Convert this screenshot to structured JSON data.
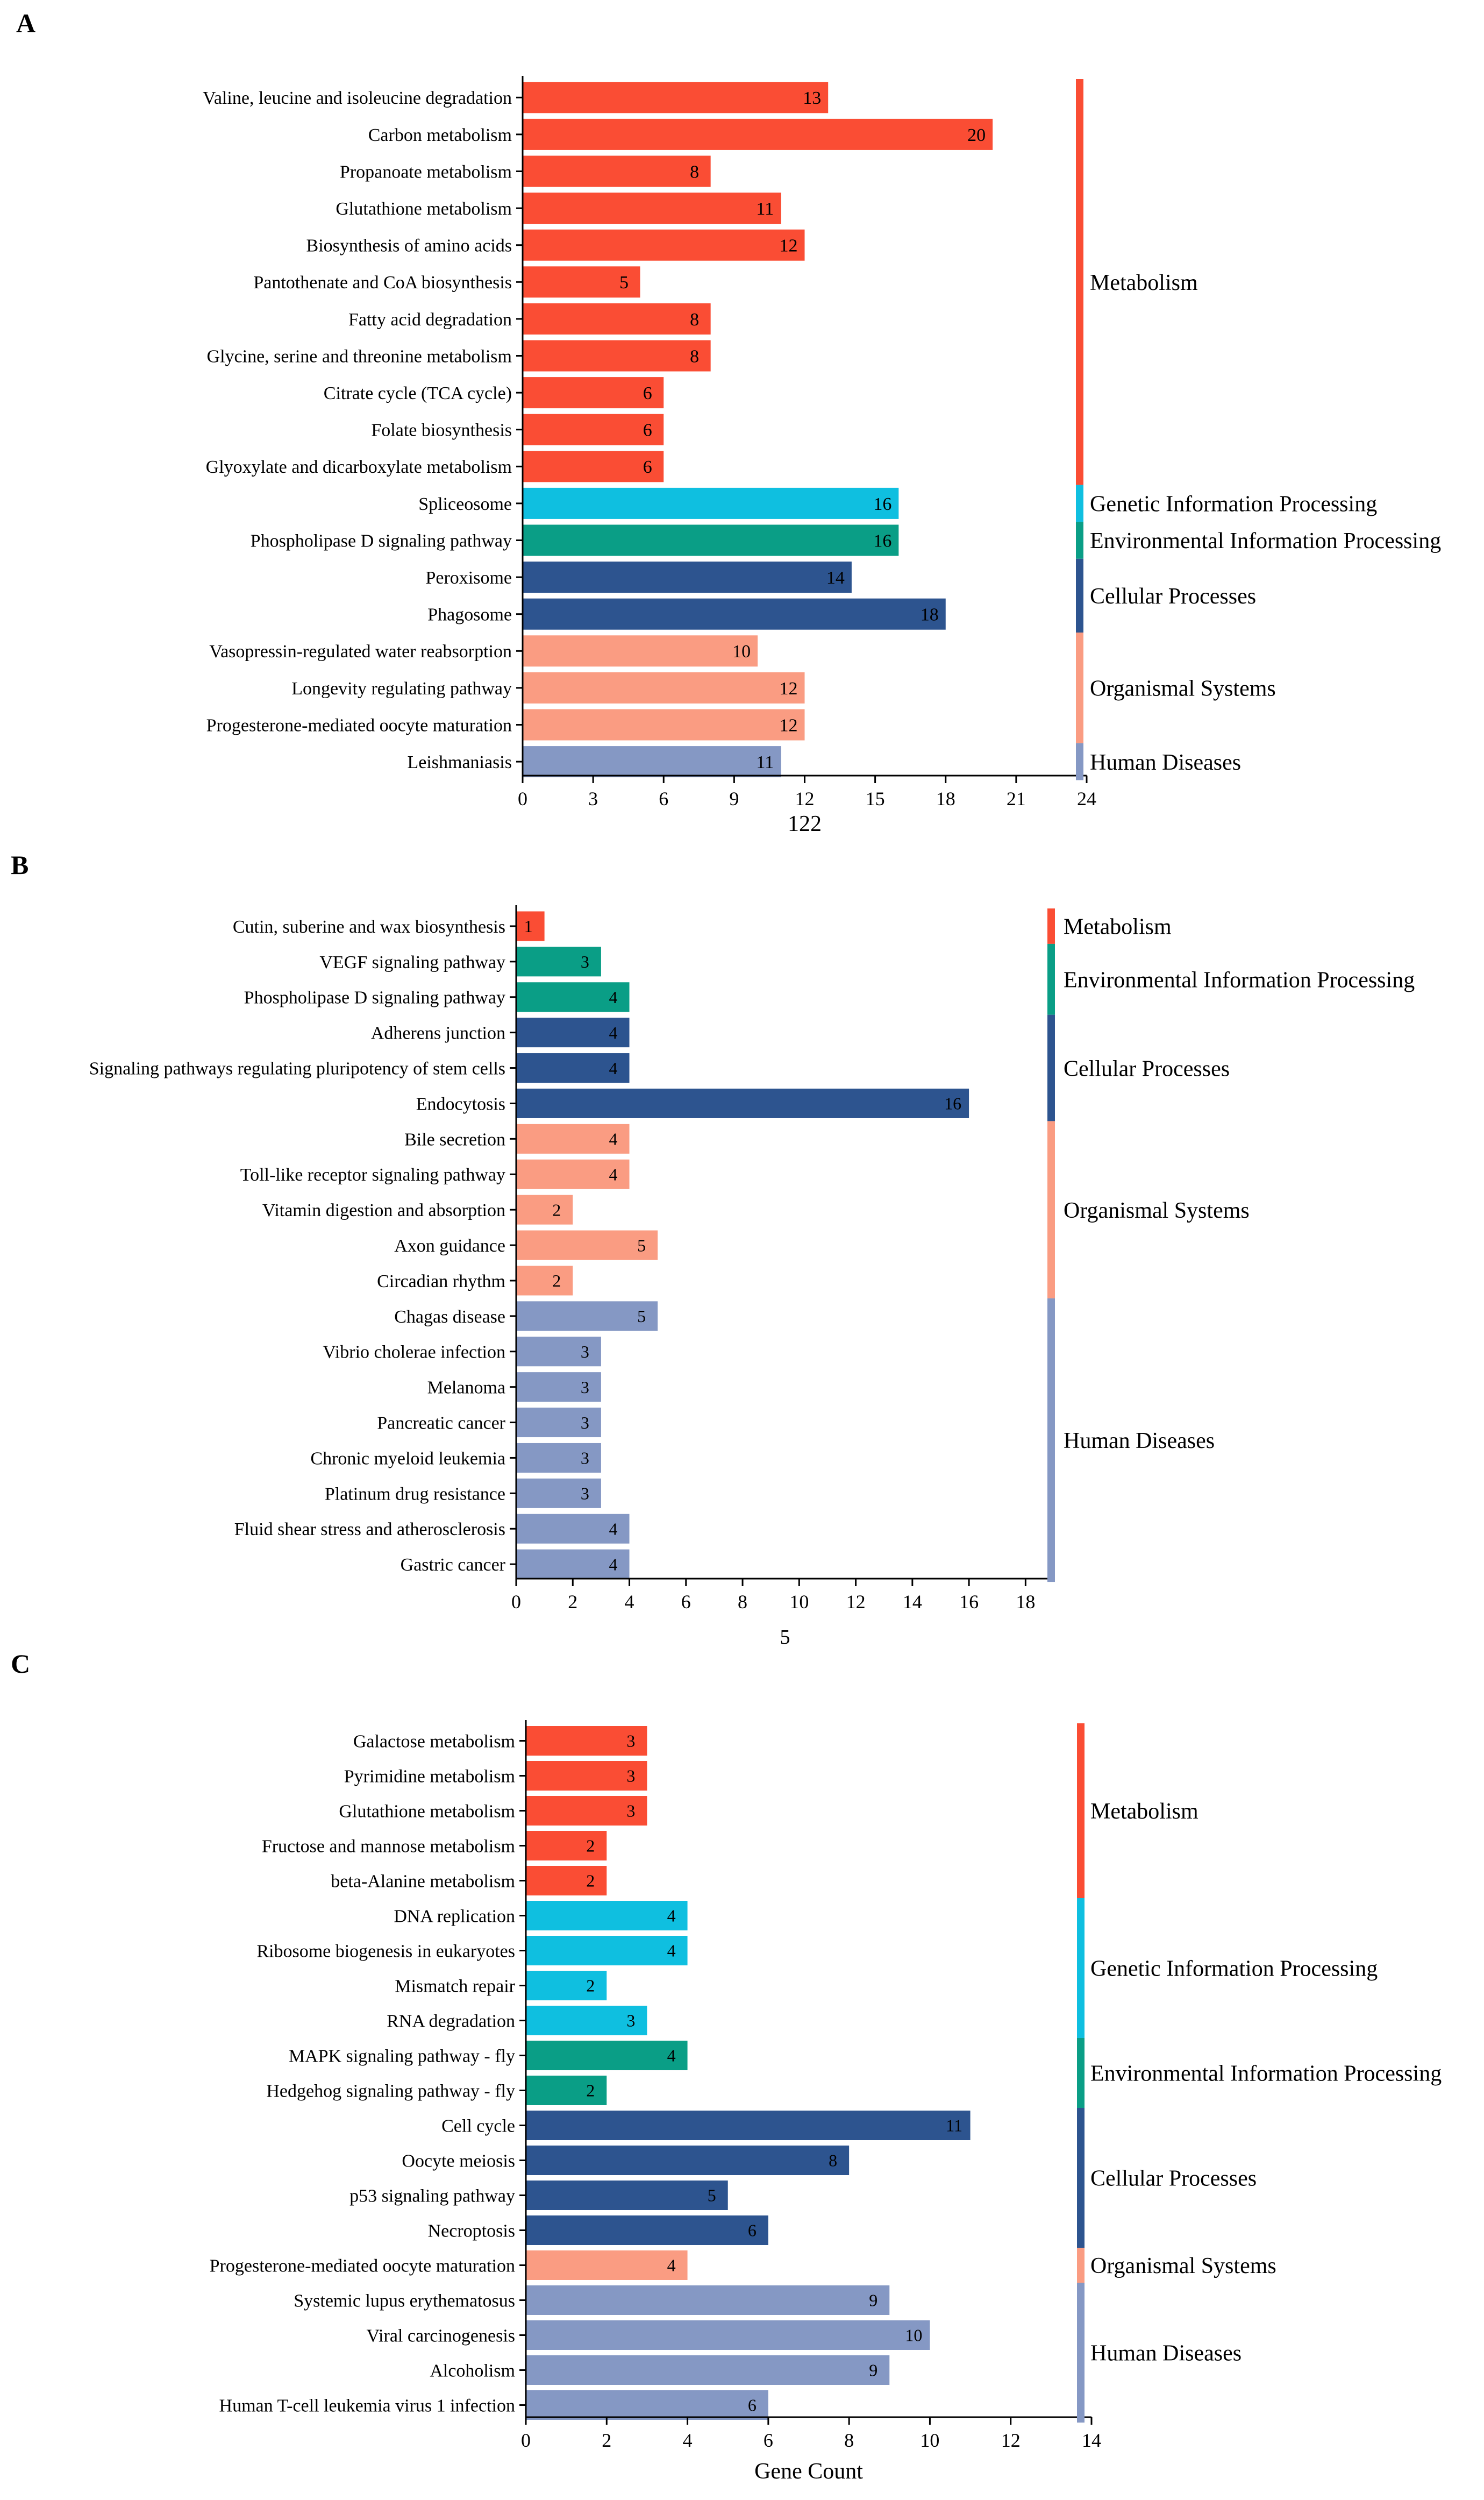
{
  "colors": {
    "Metabolism": "#fa4d34",
    "Genetic Information Processing": "#0fbfe0",
    "Environmental Information Processing": "#0a9e86",
    "Cellular Processes": "#2d548f",
    "Organismal Systems": "#fa9c82",
    "Human Diseases": "#8598c4",
    "axis": "#000000",
    "label_text": "#000000"
  },
  "chart_data": [
    {
      "panel": "A",
      "type": "bar",
      "orientation": "horizontal",
      "xlabel": "122",
      "xlim": [
        0,
        24
      ],
      "xticks": [
        0,
        3,
        6,
        9,
        12,
        15,
        18,
        21,
        24
      ],
      "categories": [
        "Valine, leucine and isoleucine degradation",
        "Carbon metabolism",
        "Propanoate metabolism",
        "Glutathione metabolism",
        "Biosynthesis of amino acids",
        "Pantothenate and CoA biosynthesis",
        "Fatty acid degradation",
        "Glycine, serine and threonine metabolism",
        "Citrate cycle (TCA cycle)",
        "Folate biosynthesis",
        "Glyoxylate and dicarboxylate metabolism",
        "Spliceosome",
        "Phospholipase D signaling pathway",
        "Peroxisome",
        "Phagosome",
        "Vasopressin-regulated water reabsorption",
        "Longevity regulating pathway",
        "Progesterone-mediated oocyte maturation",
        "Leishmaniasis"
      ],
      "values": [
        13,
        20,
        8,
        11,
        12,
        5,
        8,
        8,
        6,
        6,
        6,
        16,
        16,
        14,
        18,
        10,
        12,
        12,
        11
      ],
      "groups": [
        "Metabolism",
        "Metabolism",
        "Metabolism",
        "Metabolism",
        "Metabolism",
        "Metabolism",
        "Metabolism",
        "Metabolism",
        "Metabolism",
        "Metabolism",
        "Metabolism",
        "Genetic Information Processing",
        "Environmental Information Processing",
        "Cellular Processes",
        "Cellular Processes",
        "Organismal Systems",
        "Organismal Systems",
        "Organismal Systems",
        "Human Diseases"
      ]
    },
    {
      "panel": "B",
      "type": "bar",
      "orientation": "horizontal",
      "xlabel": "5",
      "xlim": [
        0,
        19
      ],
      "xticks": [
        0,
        2,
        4,
        6,
        8,
        10,
        12,
        14,
        16,
        18
      ],
      "categories": [
        "Cutin, suberine and wax biosynthesis",
        "VEGF signaling pathway",
        "Phospholipase D signaling pathway",
        "Adherens junction",
        "Signaling pathways regulating pluripotency of stem cells",
        "Endocytosis",
        "Bile secretion",
        "Toll-like receptor signaling pathway",
        "Vitamin digestion and absorption",
        "Axon guidance",
        "Circadian rhythm",
        "Chagas disease",
        "Vibrio cholerae infection",
        "Melanoma",
        "Pancreatic cancer",
        "Chronic myeloid leukemia",
        "Platinum drug resistance",
        "Fluid shear stress and atherosclerosis",
        "Gastric cancer"
      ],
      "values": [
        1,
        3,
        4,
        4,
        4,
        16,
        4,
        4,
        2,
        5,
        2,
        5,
        3,
        3,
        3,
        3,
        3,
        4,
        4
      ],
      "groups": [
        "Metabolism",
        "Environmental Information Processing",
        "Environmental Information Processing",
        "Cellular Processes",
        "Cellular Processes",
        "Cellular Processes",
        "Organismal Systems",
        "Organismal Systems",
        "Organismal Systems",
        "Organismal Systems",
        "Organismal Systems",
        "Human Diseases",
        "Human Diseases",
        "Human Diseases",
        "Human Diseases",
        "Human Diseases",
        "Human Diseases",
        "Human Diseases",
        "Human Diseases"
      ]
    },
    {
      "panel": "C",
      "type": "bar",
      "orientation": "horizontal",
      "xlabel": "Gene Count",
      "xlim": [
        0,
        14
      ],
      "xticks": [
        0,
        2,
        4,
        6,
        8,
        10,
        12,
        14
      ],
      "categories": [
        "Galactose metabolism",
        "Pyrimidine metabolism",
        "Glutathione metabolism",
        "Fructose and mannose metabolism",
        "beta-Alanine metabolism",
        "DNA replication",
        "Ribosome biogenesis in eukaryotes",
        "Mismatch repair",
        "RNA degradation",
        "MAPK signaling pathway - fly",
        "Hedgehog signaling pathway - fly",
        "Cell cycle",
        "Oocyte meiosis",
        "p53 signaling pathway",
        "Necroptosis",
        "Progesterone-mediated oocyte maturation",
        "Systemic lupus erythematosus",
        "Viral carcinogenesis",
        "Alcoholism",
        "Human T-cell leukemia virus 1 infection"
      ],
      "values": [
        3,
        3,
        3,
        2,
        2,
        4,
        4,
        2,
        3,
        4,
        2,
        11,
        8,
        5,
        6,
        4,
        9,
        10,
        9,
        6
      ],
      "groups": [
        "Metabolism",
        "Metabolism",
        "Metabolism",
        "Metabolism",
        "Metabolism",
        "Genetic Information Processing",
        "Genetic Information Processing",
        "Genetic Information Processing",
        "Genetic Information Processing",
        "Environmental Information Processing",
        "Environmental Information Processing",
        "Cellular Processes",
        "Cellular Processes",
        "Cellular Processes",
        "Cellular Processes",
        "Organismal Systems",
        "Human Diseases",
        "Human Diseases",
        "Human Diseases",
        "Human Diseases"
      ]
    }
  ]
}
